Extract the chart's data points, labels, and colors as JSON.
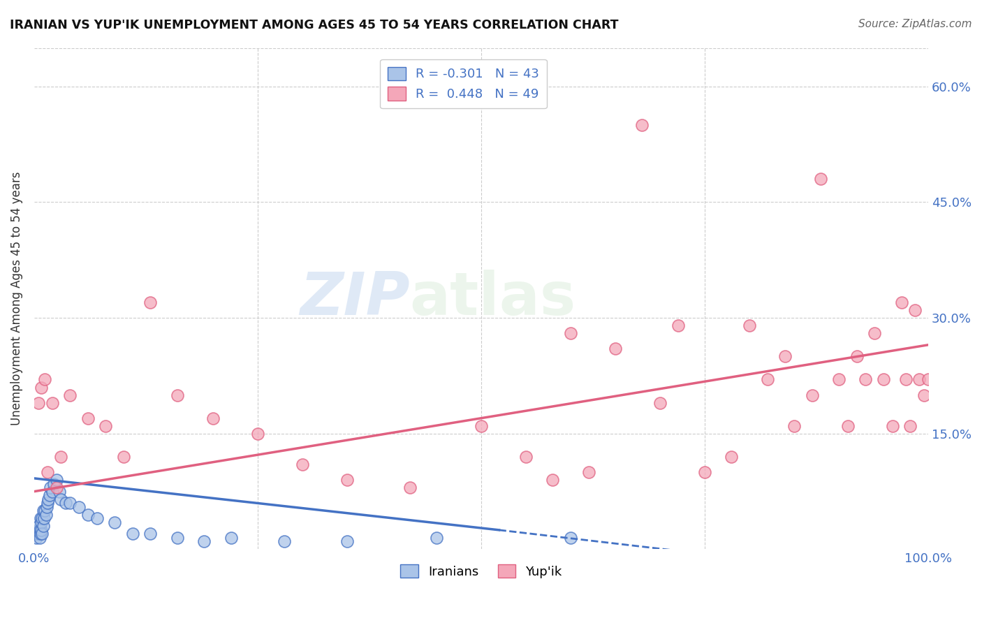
{
  "title": "IRANIAN VS YUP'IK UNEMPLOYMENT AMONG AGES 45 TO 54 YEARS CORRELATION CHART",
  "source": "Source: ZipAtlas.com",
  "ylabel": "Unemployment Among Ages 45 to 54 years",
  "xlim": [
    0.0,
    1.0
  ],
  "ylim": [
    0.0,
    0.65
  ],
  "x_ticks": [
    0.0,
    0.25,
    0.5,
    0.75,
    1.0
  ],
  "x_tick_labels": [
    "0.0%",
    "",
    "",
    "",
    "100.0%"
  ],
  "y_ticks": [
    0.15,
    0.3,
    0.45,
    0.6
  ],
  "y_tick_labels": [
    "15.0%",
    "30.0%",
    "45.0%",
    "60.0%"
  ],
  "watermark_zip": "ZIP",
  "watermark_atlas": "atlas",
  "iranian_color": "#aac4e8",
  "yupik_color": "#f4a7b9",
  "iranian_line_color": "#4472c4",
  "yupik_line_color": "#e06080",
  "legend_R_iranian": "-0.301",
  "legend_N_iranian": "43",
  "legend_R_yupik": "0.448",
  "legend_N_yupik": "49",
  "iranians_label": "Iranians",
  "yupik_label": "Yup'ik",
  "accent_color": "#4472c4",
  "iranian_points_x": [
    0.002,
    0.003,
    0.004,
    0.005,
    0.005,
    0.006,
    0.006,
    0.007,
    0.007,
    0.008,
    0.008,
    0.009,
    0.009,
    0.01,
    0.01,
    0.011,
    0.012,
    0.013,
    0.014,
    0.015,
    0.016,
    0.017,
    0.018,
    0.02,
    0.022,
    0.025,
    0.028,
    0.03,
    0.035,
    0.04,
    0.05,
    0.06,
    0.07,
    0.09,
    0.11,
    0.13,
    0.16,
    0.19,
    0.22,
    0.28,
    0.35,
    0.45,
    0.6
  ],
  "iranian_points_y": [
    0.015,
    0.02,
    0.025,
    0.02,
    0.03,
    0.015,
    0.025,
    0.02,
    0.04,
    0.025,
    0.035,
    0.02,
    0.04,
    0.03,
    0.05,
    0.04,
    0.05,
    0.045,
    0.055,
    0.06,
    0.065,
    0.07,
    0.08,
    0.075,
    0.085,
    0.09,
    0.075,
    0.065,
    0.06,
    0.06,
    0.055,
    0.045,
    0.04,
    0.035,
    0.02,
    0.02,
    0.015,
    0.01,
    0.015,
    0.01,
    0.01,
    0.015,
    0.015
  ],
  "yupik_points_x": [
    0.005,
    0.008,
    0.012,
    0.015,
    0.02,
    0.025,
    0.03,
    0.04,
    0.06,
    0.08,
    0.1,
    0.13,
    0.16,
    0.2,
    0.25,
    0.3,
    0.35,
    0.42,
    0.5,
    0.55,
    0.58,
    0.6,
    0.62,
    0.65,
    0.68,
    0.7,
    0.72,
    0.75,
    0.78,
    0.8,
    0.82,
    0.84,
    0.85,
    0.87,
    0.88,
    0.9,
    0.91,
    0.92,
    0.93,
    0.94,
    0.95,
    0.96,
    0.97,
    0.975,
    0.98,
    0.985,
    0.99,
    0.995,
    1.0
  ],
  "yupik_points_y": [
    0.19,
    0.21,
    0.22,
    0.1,
    0.19,
    0.08,
    0.12,
    0.2,
    0.17,
    0.16,
    0.12,
    0.32,
    0.2,
    0.17,
    0.15,
    0.11,
    0.09,
    0.08,
    0.16,
    0.12,
    0.09,
    0.28,
    0.1,
    0.26,
    0.55,
    0.19,
    0.29,
    0.1,
    0.12,
    0.29,
    0.22,
    0.25,
    0.16,
    0.2,
    0.48,
    0.22,
    0.16,
    0.25,
    0.22,
    0.28,
    0.22,
    0.16,
    0.32,
    0.22,
    0.16,
    0.31,
    0.22,
    0.2,
    0.22
  ],
  "iranian_line_x_start": 0.0,
  "iranian_line_x_solid_end": 0.52,
  "iranian_line_x_dash_end": 0.78,
  "iranian_line_y_start": 0.092,
  "iranian_line_y_solid_end": 0.025,
  "iranian_line_y_dash_end": -0.01,
  "yupik_line_x_start": 0.0,
  "yupik_line_x_end": 1.0,
  "yupik_line_y_start": 0.075,
  "yupik_line_y_end": 0.265
}
